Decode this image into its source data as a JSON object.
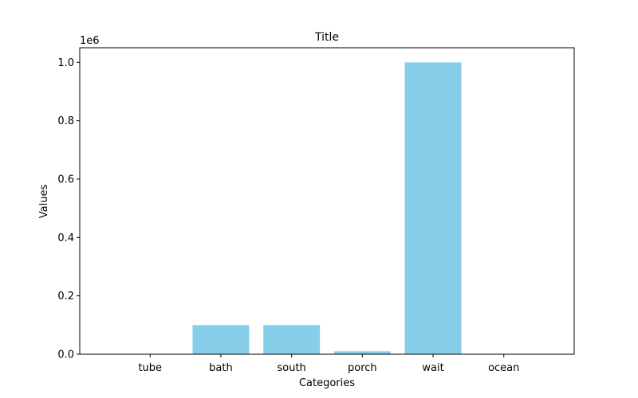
{
  "chart_data": {
    "type": "bar",
    "title": "Title",
    "xlabel": "Categories",
    "ylabel": "Values",
    "y_scale_label": "1e6",
    "categories": [
      "tube",
      "bath",
      "south",
      "porch",
      "wait",
      "ocean"
    ],
    "values": [
      1000,
      100000,
      100000,
      10000,
      1000000,
      100
    ],
    "ylim": [
      0,
      1050000
    ],
    "yticks": [
      0,
      200000,
      400000,
      600000,
      800000,
      1000000
    ],
    "ytick_labels": [
      "0.0",
      "0.2",
      "0.4",
      "0.6",
      "0.8",
      "1.0"
    ],
    "bar_color": "#87ceeb",
    "grid": false,
    "legend": "none"
  }
}
